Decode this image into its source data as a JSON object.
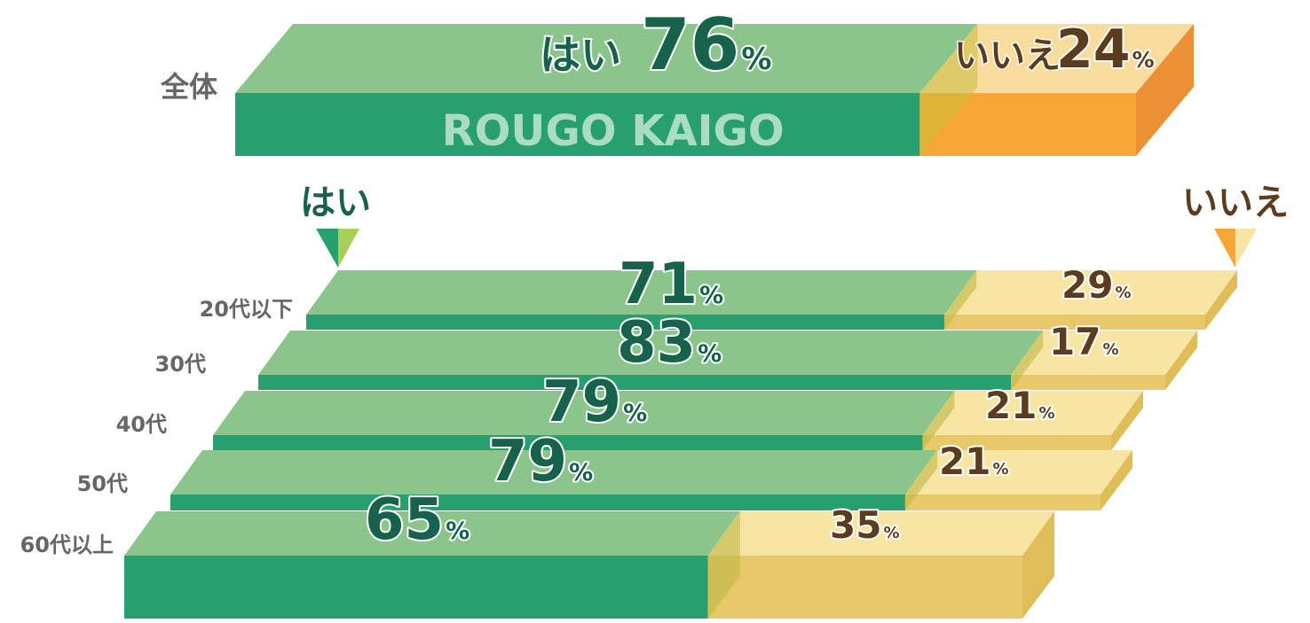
{
  "colors": {
    "yes_top": "#8bc58b",
    "yes_front": "#279f6e",
    "yes_text": "#17624b",
    "no_top_overall": "#f8dc9e",
    "no_front_overall": "#f5a634",
    "no_side_overall": "#ec9035",
    "no_top": "#f8e4a3",
    "no_front": "#e8c868",
    "no_side": "#dfbd58",
    "no_text": "#5c3c1e",
    "label_gray": "#666666",
    "watermark": "#a9dcc2",
    "arrow_yes_dark": "#279f6e",
    "arrow_yes_light": "#a8cf56",
    "arrow_no_dark": "#f5a634",
    "arrow_no_light": "#f8e4a3"
  },
  "watermark": "ROUGO KAIGO",
  "legend": {
    "yes": "はい",
    "no": "いいえ"
  },
  "chart_data": [
    {
      "type": "bar",
      "stacked": true,
      "category": "全体",
      "series": [
        {
          "name": "はい",
          "value": 76
        },
        {
          "name": "いいえ",
          "value": 24
        }
      ],
      "yes_label": "はい",
      "no_label": "いいえ",
      "unit": "%"
    },
    {
      "type": "bar",
      "stacked": true,
      "categories": [
        "20代以下",
        "30代",
        "40代",
        "50代",
        "60代以上"
      ],
      "series": [
        {
          "name": "はい",
          "values": [
            71,
            83,
            79,
            79,
            65
          ]
        },
        {
          "name": "いいえ",
          "values": [
            29,
            17,
            21,
            21,
            35
          ]
        }
      ],
      "unit": "%"
    }
  ]
}
